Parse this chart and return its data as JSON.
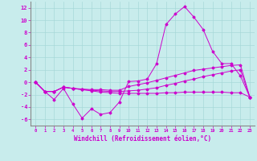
{
  "xlabel": "Windchill (Refroidissement éolien,°C)",
  "background_color": "#c8ecec",
  "grid_color": "#a8d8d8",
  "line_color": "#cc00cc",
  "xlim": [
    -0.5,
    23.5
  ],
  "ylim": [
    -7,
    13
  ],
  "yticks": [
    -6,
    -4,
    -2,
    0,
    2,
    4,
    6,
    8,
    10,
    12
  ],
  "xticks": [
    0,
    1,
    2,
    3,
    4,
    5,
    6,
    7,
    8,
    9,
    10,
    11,
    12,
    13,
    14,
    15,
    16,
    17,
    18,
    19,
    20,
    21,
    22,
    23
  ],
  "line1": [
    0.0,
    -1.5,
    -2.8,
    -1.0,
    -3.5,
    -5.8,
    -4.3,
    -5.2,
    -4.9,
    -3.2,
    0.1,
    0.2,
    0.5,
    3.0,
    9.3,
    11.0,
    12.2,
    10.5,
    8.5,
    5.0,
    3.0,
    3.0,
    1.0,
    -2.4
  ],
  "line2": [
    0.0,
    -1.5,
    -1.5,
    -0.8,
    -1.0,
    -1.1,
    -1.2,
    -1.2,
    -1.3,
    -1.3,
    -0.7,
    -0.4,
    -0.1,
    0.3,
    0.7,
    1.1,
    1.5,
    1.9,
    2.1,
    2.3,
    2.5,
    2.7,
    2.8,
    -2.4
  ],
  "line3": [
    0.0,
    -1.5,
    -1.5,
    -0.8,
    -1.0,
    -1.2,
    -1.3,
    -1.4,
    -1.5,
    -1.5,
    -1.4,
    -1.3,
    -1.1,
    -0.9,
    -0.5,
    -0.2,
    0.2,
    0.5,
    0.9,
    1.2,
    1.5,
    1.8,
    2.0,
    -2.4
  ],
  "line4": [
    0.0,
    -1.5,
    -1.5,
    -0.8,
    -1.0,
    -1.2,
    -1.4,
    -1.6,
    -1.7,
    -1.8,
    -1.8,
    -1.8,
    -1.8,
    -1.8,
    -1.7,
    -1.7,
    -1.6,
    -1.6,
    -1.6,
    -1.6,
    -1.6,
    -1.7,
    -1.7,
    -2.4
  ]
}
